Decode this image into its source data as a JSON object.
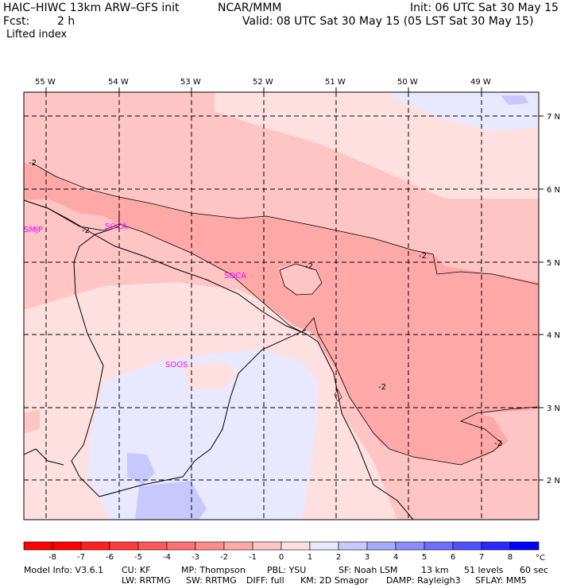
{
  "header": {
    "model": "HAIC–HIWC 13km ARW–GFS init",
    "org": "NCAR/MMM",
    "init": "Init: 06 UTC Sat 30 May 15",
    "fcst_label": "Fcst:",
    "fcst_value": "2 h",
    "valid": "Valid: 08 UTC Sat 30 May 15 (05 LST Sat 30 May 15)",
    "field": "Lifted index"
  },
  "map": {
    "lon_labels": [
      "55 W",
      "54 W",
      "53 W",
      "52 W",
      "51 W",
      "50 W",
      "49 W"
    ],
    "lat_labels": [
      "7 N",
      "6 N",
      "5 N",
      "4 N",
      "3 N",
      "2 N"
    ],
    "stations": [
      "SMJP",
      "SOCA",
      "SOCA",
      "SOOS"
    ],
    "contour_labels": [
      "-2",
      "-2",
      "-2",
      "-2",
      "-2",
      "-2"
    ]
  },
  "colorbar": {
    "ticks": [
      "-8",
      "-7",
      "-6",
      "-5",
      "-4",
      "-3",
      "-2",
      "-1",
      "0",
      "1",
      "2",
      "3",
      "4",
      "5",
      "6",
      "7",
      "8"
    ],
    "unit": "°C",
    "colors": [
      "#ff0000",
      "#ff2020",
      "#ff3c3c",
      "#ff5656",
      "#ff7070",
      "#ff8c8c",
      "#ffa8a8",
      "#ffc4c4",
      "#ffe0e0",
      "#e8e8ff",
      "#c8c8ff",
      "#a8a8ff",
      "#8c8cff",
      "#6e6eff",
      "#5050ff",
      "#2828ff",
      "#0000ff"
    ]
  },
  "footer": {
    "line1": [
      "Model Info: V3.6.1",
      "CU: KF",
      "MP: Thompson",
      "PBL: YSU",
      "SF: Noah LSM",
      "13 km",
      "51 levels",
      "60 sec"
    ],
    "line2": [
      "LW: RRTMG",
      "SW: RRTMG",
      "DIFF: full",
      "KM: 2D Smagor",
      "DAMP: Rayleigh3",
      "SFLAY: MM5"
    ]
  }
}
